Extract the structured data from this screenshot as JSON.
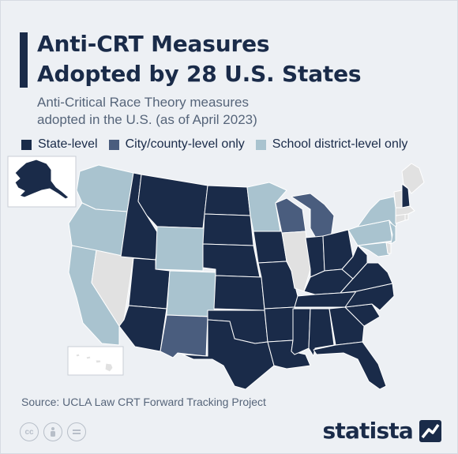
{
  "header": {
    "title_lines": [
      "Anti-CRT Measures",
      "Adopted by 28 U.S. States"
    ],
    "subtitle_lines": [
      "Anti-Critical Race Theory measures",
      "adopted in the U.S. (as of April 2023)"
    ]
  },
  "legend": [
    {
      "label": "State-level",
      "color": "#1a2b49"
    },
    {
      "label": "City/county-level only",
      "color": "#4a5d7e"
    },
    {
      "label": "School district-level only",
      "color": "#a9c3cf"
    }
  ],
  "colors": {
    "state_level": "#1a2b49",
    "city_county_only": "#4a5d7e",
    "school_district_only": "#a9c3cf",
    "none": "#e1e1e1"
  },
  "map": {
    "states": [
      {
        "abbr": "WA",
        "category": "school_district_only"
      },
      {
        "abbr": "OR",
        "category": "school_district_only"
      },
      {
        "abbr": "CA",
        "category": "school_district_only"
      },
      {
        "abbr": "NV",
        "category": "none"
      },
      {
        "abbr": "ID",
        "category": "state_level"
      },
      {
        "abbr": "MT",
        "category": "state_level"
      },
      {
        "abbr": "WY",
        "category": "school_district_only"
      },
      {
        "abbr": "UT",
        "category": "state_level"
      },
      {
        "abbr": "CO",
        "category": "school_district_only"
      },
      {
        "abbr": "AZ",
        "category": "state_level"
      },
      {
        "abbr": "NM",
        "category": "city_county_only"
      },
      {
        "abbr": "ND",
        "category": "state_level"
      },
      {
        "abbr": "SD",
        "category": "state_level"
      },
      {
        "abbr": "NE",
        "category": "state_level"
      },
      {
        "abbr": "KS",
        "category": "state_level"
      },
      {
        "abbr": "OK",
        "category": "state_level"
      },
      {
        "abbr": "TX",
        "category": "state_level"
      },
      {
        "abbr": "MN",
        "category": "school_district_only"
      },
      {
        "abbr": "IA",
        "category": "state_level"
      },
      {
        "abbr": "MO",
        "category": "state_level"
      },
      {
        "abbr": "AR",
        "category": "state_level"
      },
      {
        "abbr": "LA",
        "category": "state_level"
      },
      {
        "abbr": "WI",
        "category": "city_county_only"
      },
      {
        "abbr": "IL",
        "category": "none"
      },
      {
        "abbr": "MI",
        "category": "city_county_only"
      },
      {
        "abbr": "IN",
        "category": "state_level"
      },
      {
        "abbr": "OH",
        "category": "state_level"
      },
      {
        "abbr": "KY",
        "category": "state_level"
      },
      {
        "abbr": "TN",
        "category": "state_level"
      },
      {
        "abbr": "MS",
        "category": "state_level"
      },
      {
        "abbr": "AL",
        "category": "state_level"
      },
      {
        "abbr": "GA",
        "category": "state_level"
      },
      {
        "abbr": "FL",
        "category": "state_level"
      },
      {
        "abbr": "SC",
        "category": "state_level"
      },
      {
        "abbr": "NC",
        "category": "state_level"
      },
      {
        "abbr": "VA",
        "category": "state_level"
      },
      {
        "abbr": "WV",
        "category": "state_level"
      },
      {
        "abbr": "PA",
        "category": "school_district_only"
      },
      {
        "abbr": "NY",
        "category": "school_district_only"
      },
      {
        "abbr": "NJ",
        "category": "school_district_only"
      },
      {
        "abbr": "MD",
        "category": "school_district_only"
      },
      {
        "abbr": "DE",
        "category": "none"
      },
      {
        "abbr": "NH",
        "category": "state_level"
      },
      {
        "abbr": "VT",
        "category": "none"
      },
      {
        "abbr": "ME",
        "category": "none"
      },
      {
        "abbr": "MA",
        "category": "none"
      },
      {
        "abbr": "CT",
        "category": "none"
      },
      {
        "abbr": "RI",
        "category": "none"
      },
      {
        "abbr": "AK",
        "category": "state_level"
      },
      {
        "abbr": "HI",
        "category": "none"
      }
    ]
  },
  "footer": {
    "source": "Source: UCLA Law CRT Forward Tracking Project",
    "brand": "statista"
  }
}
